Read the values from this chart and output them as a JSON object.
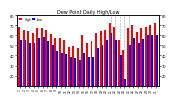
{
  "title": "Dew Point Daily High/Low",
  "background_color": "#ffffff",
  "bar_color_high": "#ff0000",
  "bar_color_low": "#0000ff",
  "ylim": [
    10,
    80
  ],
  "yticks": [
    20,
    30,
    40,
    50,
    60,
    70,
    80
  ],
  "days": [
    "1",
    "2",
    "3",
    "4",
    "5",
    "6",
    "7",
    "8",
    "9",
    "10",
    "11",
    "12",
    "13",
    "14",
    "15",
    "16",
    "17",
    "18",
    "19",
    "20",
    "21",
    "22",
    "23",
    "24",
    "25",
    "26",
    "27",
    "28",
    "29",
    "30",
    "31"
  ],
  "highs": [
    68,
    65,
    64,
    62,
    67,
    67,
    65,
    61,
    57,
    57,
    55,
    48,
    49,
    47,
    60,
    52,
    54,
    62,
    64,
    65,
    72,
    68,
    55,
    45,
    67,
    70,
    63,
    67,
    68,
    70,
    72
  ],
  "lows": [
    55,
    55,
    52,
    52,
    57,
    58,
    54,
    50,
    44,
    42,
    41,
    38,
    37,
    35,
    42,
    38,
    38,
    47,
    50,
    55,
    62,
    55,
    40,
    17,
    50,
    57,
    52,
    56,
    60,
    60,
    60
  ],
  "dashed_lines": [
    20,
    21,
    22,
    23,
    24
  ],
  "legend_high": "High",
  "legend_low": "Low"
}
